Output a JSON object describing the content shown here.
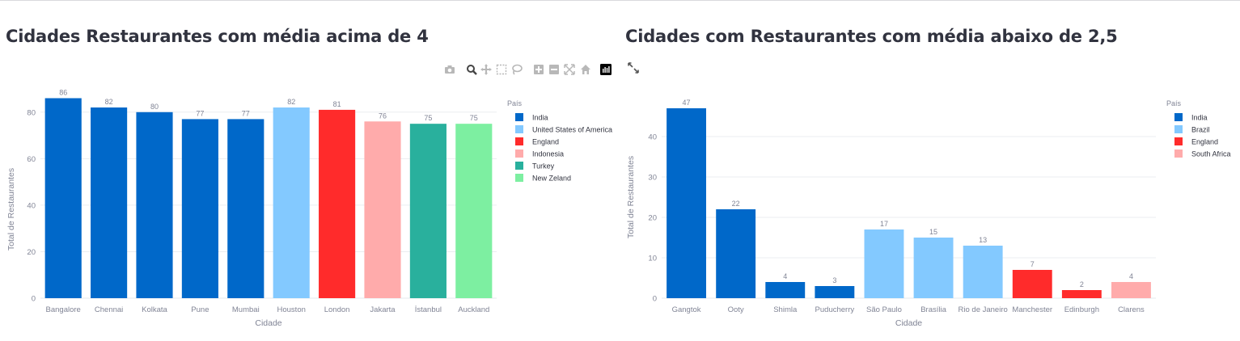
{
  "chart_data": [
    {
      "type": "bar",
      "title": "Cidades Restaurantes com média acima de 4",
      "xlabel": "Cidade",
      "ylabel": "Total de Restaurantes",
      "ylim": [
        0,
        90
      ],
      "yticks": [
        0,
        20,
        40,
        60,
        80
      ],
      "grid": true,
      "legend_title": "País",
      "legend_position": "right",
      "legend": [
        {
          "name": "India",
          "color": "#0068c9"
        },
        {
          "name": "United States of America",
          "color": "#83c9ff"
        },
        {
          "name": "England",
          "color": "#ff2b2b"
        },
        {
          "name": "Indonesia",
          "color": "#ffabab"
        },
        {
          "name": "Turkey",
          "color": "#29b09d"
        },
        {
          "name": "New Zeland",
          "color": "#7defa1"
        }
      ],
      "categories": [
        "Bangalore",
        "Chennai",
        "Kolkata",
        "Pune",
        "Mumbai",
        "Houston",
        "London",
        "Jakarta",
        "İstanbul",
        "Auckland"
      ],
      "values": [
        86,
        82,
        80,
        77,
        77,
        82,
        81,
        76,
        75,
        75
      ],
      "colors": [
        "#0068c9",
        "#0068c9",
        "#0068c9",
        "#0068c9",
        "#0068c9",
        "#83c9ff",
        "#ff2b2b",
        "#ffabab",
        "#29b09d",
        "#7defa1"
      ]
    },
    {
      "type": "bar",
      "title": "Cidades com Restaurantes com média abaixo de 2,5",
      "xlabel": "Cidade",
      "ylabel": "Total de Restaurantes",
      "ylim": [
        0,
        50
      ],
      "yticks": [
        0,
        10,
        20,
        30,
        40
      ],
      "grid": true,
      "legend_title": "País",
      "legend_position": "right",
      "legend": [
        {
          "name": "India",
          "color": "#0068c9"
        },
        {
          "name": "Brazil",
          "color": "#83c9ff"
        },
        {
          "name": "England",
          "color": "#ff2b2b"
        },
        {
          "name": "South Africa",
          "color": "#ffabab"
        }
      ],
      "categories": [
        "Gangtok",
        "Ooty",
        "Shimla",
        "Puducherry",
        "São Paulo",
        "Brasília",
        "Rio de Janeiro",
        "Manchester",
        "Edinburgh",
        "Clarens"
      ],
      "values": [
        47,
        22,
        4,
        3,
        17,
        15,
        13,
        7,
        2,
        4
      ],
      "colors": [
        "#0068c9",
        "#0068c9",
        "#0068c9",
        "#0068c9",
        "#83c9ff",
        "#83c9ff",
        "#83c9ff",
        "#ff2b2b",
        "#ff2b2b",
        "#ffabab"
      ]
    }
  ],
  "toolbar": {
    "icons": [
      "camera-icon",
      "zoom-icon",
      "pan-icon",
      "box-select-icon",
      "lasso-icon",
      "zoom-in-icon",
      "zoom-out-icon",
      "autoscale-icon",
      "reset-axes-icon",
      "plotly-logo-icon"
    ]
  },
  "expand_icon": "expand-icon"
}
